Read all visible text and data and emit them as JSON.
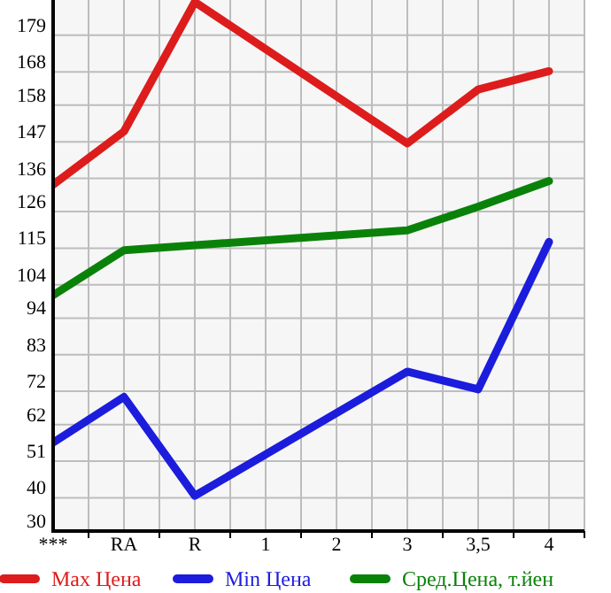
{
  "chart_data": {
    "type": "line",
    "categories": [
      "***",
      "RA",
      "R",
      "1",
      "2",
      "3",
      "3,5",
      "4"
    ],
    "series": [
      {
        "name": "Max Цена",
        "color": "#dd1c1c",
        "values": [
          134.1,
          150.1,
          189,
          null,
          null,
          146.5,
          162.7,
          168.2
        ]
      },
      {
        "name": "Min Цена",
        "color": "#1c1cdd",
        "values": [
          56.6,
          70.3,
          40.6,
          null,
          null,
          77.9,
          72.6,
          116.9
        ]
      },
      {
        "name": "Сред.Цена, т.йен",
        "color": "#0a820a",
        "values": [
          100.9,
          114.4,
          null,
          null,
          null,
          120.4,
          127.5,
          135.2
        ]
      }
    ],
    "ylim": [
      30,
      189.6
    ],
    "yticks": [
      30,
      40,
      51,
      62,
      72,
      83,
      94,
      104,
      115,
      126,
      136,
      147,
      158,
      168,
      179
    ],
    "grid": true,
    "legend": "bottom",
    "marker": "none",
    "line_style": "solid"
  }
}
